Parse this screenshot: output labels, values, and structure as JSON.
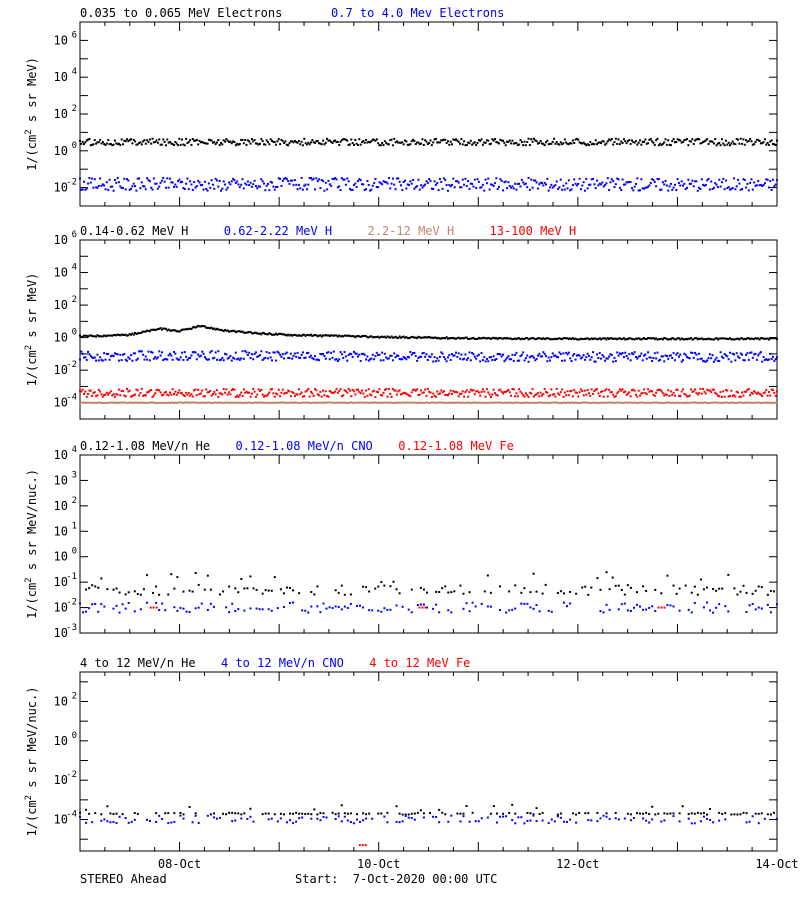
{
  "chart_data": [
    {
      "type": "scatter",
      "ylabel_base": "1/(cm",
      "ylabel_sup": "2",
      "ylabel_tail": " s sr MeV)",
      "ylog": true,
      "ylim_exp": [
        -3,
        7
      ],
      "tick_exps": [
        -2,
        0,
        2,
        4,
        6
      ],
      "series": [
        {
          "name": "0.035 to 0.065 MeV Electrons",
          "color": "#000000",
          "x": [
            0,
            1.5,
            3,
            4.5,
            6,
            7
          ],
          "y": [
            3,
            3,
            3,
            3,
            3,
            3
          ]
        },
        {
          "name": "0.7 to 4.0 Mev Electrons",
          "color": "#0000ff",
          "x": [
            0,
            1.5,
            3,
            4.5,
            6,
            7
          ],
          "y": [
            0.015,
            0.015,
            0.015,
            0.015,
            0.015,
            0.015
          ]
        }
      ]
    },
    {
      "type": "scatter",
      "ylabel_base": "1/(cm",
      "ylabel_sup": "2",
      "ylabel_tail": " s sr MeV)",
      "ylog": true,
      "ylim_exp": [
        -5,
        6
      ],
      "tick_exps": [
        -4,
        -2,
        0,
        2,
        4,
        6
      ],
      "series": [
        {
          "name": "0.14-0.62 MeV H",
          "color": "#000000",
          "x": [
            0,
            0.5,
            0.8,
            1.0,
            1.2,
            1.5,
            1.8,
            2.2,
            3,
            4,
            5,
            6,
            7
          ],
          "y": [
            1.2,
            1.5,
            3.5,
            2.5,
            5,
            2.5,
            1.8,
            1.4,
            1.1,
            0.9,
            0.85,
            0.85,
            0.85
          ]
        },
        {
          "name": "0.62-2.22 MeV H",
          "color": "#0000ff",
          "x": [
            0,
            1,
            2,
            3,
            4,
            5,
            6,
            7
          ],
          "y": [
            0.07,
            0.08,
            0.075,
            0.07,
            0.065,
            0.065,
            0.065,
            0.065
          ]
        },
        {
          "name": "2.2-12 MeV H",
          "color": "#c8846e",
          "x": [
            0,
            1,
            2,
            3,
            4,
            5,
            6,
            7
          ],
          "y": [
            0.0001,
            0.0001,
            0.0001,
            0.0001,
            0.0001,
            0.0001,
            0.0001,
            0.0001
          ]
        },
        {
          "name": "13-100 MeV H",
          "color": "#ff0000",
          "x": [
            0,
            1,
            2,
            3,
            4,
            5,
            6,
            7
          ],
          "y": [
            0.0004,
            0.0004,
            0.0004,
            0.0004,
            0.0004,
            0.0004,
            0.0004,
            0.0004
          ]
        }
      ]
    },
    {
      "type": "scatter",
      "ylabel_base": "1/(cm",
      "ylabel_sup": "2",
      "ylabel_tail": " s sr MeV/nuc.)",
      "ylog": true,
      "ylim_exp": [
        -3,
        4
      ],
      "tick_exps": [
        -3,
        -2,
        -1,
        0,
        1,
        2,
        3,
        4
      ],
      "series": [
        {
          "name": "0.12-1.08 MeV/n He",
          "color": "#000000",
          "x": [
            0,
            1,
            2,
            3,
            4,
            5,
            6,
            7
          ],
          "y": [
            0.05,
            0.05,
            0.05,
            0.05,
            0.05,
            0.05,
            0.05,
            0.05
          ]
        },
        {
          "name": "0.12-1.08 MeV/n CNO",
          "color": "#0000ff",
          "x": [
            0,
            1,
            2,
            3,
            4,
            5,
            6,
            7
          ],
          "y": [
            0.01,
            0.01,
            0.01,
            0.01,
            0.01,
            0.01,
            0.01,
            0.01
          ]
        },
        {
          "name": "0.12-1.08 MeV Fe",
          "color": "#ff0000",
          "x": [
            0.7,
            3.4,
            5.8
          ],
          "y": [
            0.01,
            0.01,
            0.01
          ]
        }
      ]
    },
    {
      "type": "scatter",
      "ylabel_base": "1/(cm",
      "ylabel_sup": "2",
      "ylabel_tail": " s sr MeV/nuc.)",
      "ylog": true,
      "ylim_exp": [
        -5.6,
        3.5
      ],
      "tick_exps": [
        -4,
        -2,
        0,
        2
      ],
      "series": [
        {
          "name": "4 to 12 MeV/n He",
          "color": "#000000",
          "x": [
            0,
            1,
            2,
            3,
            4,
            5,
            6,
            7
          ],
          "y": [
            0.0002,
            0.0002,
            0.0002,
            0.0002,
            0.0002,
            0.0002,
            0.0002,
            0.0002
          ]
        },
        {
          "name": "4 to 12 MeV/n CNO",
          "color": "#0000ff",
          "x": [
            0,
            1,
            2,
            3,
            4,
            5,
            6,
            7
          ],
          "y": [
            0.0001,
            0.0001,
            0.0001,
            0.0001,
            0.0001,
            0.0001,
            0.0001,
            0.0001
          ]
        },
        {
          "name": "4 to 12 MeV Fe",
          "color": "#ff0000",
          "x": [
            2.8
          ],
          "y": [
            5e-06
          ]
        }
      ]
    }
  ],
  "xaxis": {
    "xlim": [
      0,
      7
    ],
    "ticks": [
      {
        "x": 1,
        "label": "08-Oct"
      },
      {
        "x": 3,
        "label": "10-Oct"
      },
      {
        "x": 5,
        "label": "12-Oct"
      },
      {
        "x": 7,
        "label": "14-Oct"
      }
    ]
  },
  "footer": {
    "spacecraft": "STEREO Ahead",
    "start_text": "Start:  7-Oct-2020 00:00 UTC"
  }
}
